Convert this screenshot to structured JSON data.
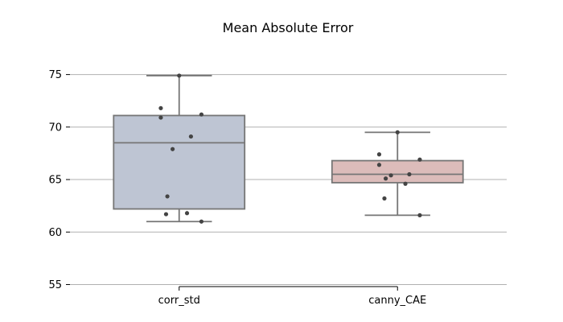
{
  "chart_data": {
    "type": "box",
    "title": "Mean Absolute Error",
    "xlabel": "",
    "ylabel": "",
    "ylim": [
      54.5,
      77.5
    ],
    "yticks": [
      55,
      60,
      65,
      70,
      75
    ],
    "ytick_labels": [
      "55",
      "60",
      "65",
      "70",
      "75"
    ],
    "grid": "horizontal",
    "categories": [
      "corr_std",
      "canny_CAE"
    ],
    "colors": {
      "corr_std": "#bec5d3",
      "canny_CAE": "#dcbcba",
      "box_edge": "#767676",
      "point": "#444444",
      "grid": "#b0b0b0"
    },
    "boxes": [
      {
        "name": "corr_std",
        "whisker_low": 61.0,
        "q1": 62.2,
        "median": 68.5,
        "q3": 71.1,
        "whisker_high": 74.9,
        "points": [
          74.9,
          71.8,
          71.2,
          70.9,
          69.1,
          67.9,
          63.4,
          61.8,
          61.7,
          61.0
        ]
      },
      {
        "name": "canny_CAE",
        "whisker_low": 61.6,
        "q1": 64.7,
        "median": 65.5,
        "q3": 66.8,
        "whisker_high": 69.5,
        "points": [
          69.5,
          67.4,
          66.9,
          66.4,
          65.5,
          65.4,
          65.1,
          64.6,
          63.2,
          61.6
        ]
      }
    ]
  }
}
